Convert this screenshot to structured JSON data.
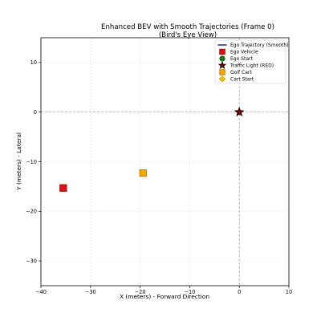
{
  "chart_data": {
    "type": "scatter",
    "title": "Enhanced BEV with Smooth Trajectories (Frame 0)",
    "subtitle": "(Bird's Eye View)",
    "xlabel": "X (meters) - Forward Direction",
    "ylabel": "Y (meters) - Lateral",
    "xlim": [
      -40,
      10
    ],
    "ylim": [
      -35,
      15
    ],
    "xticks": [
      -40,
      -30,
      -20,
      -10,
      0,
      10
    ],
    "yticks": [
      -30,
      -20,
      -10,
      0,
      10
    ],
    "xtick_labels": [
      "−40",
      "−30",
      "−20",
      "−10",
      "0",
      "10"
    ],
    "ytick_labels": [
      "−30",
      "−20",
      "−10",
      "0",
      "10"
    ],
    "grid": true,
    "reference_lines": [
      {
        "orientation": "horizontal",
        "value": 0,
        "style": "dashed"
      },
      {
        "orientation": "vertical",
        "value": 0,
        "style": "dashed"
      }
    ],
    "legend_position": "top-right",
    "series": [
      {
        "name": "Ego Trajectory (Smooth)",
        "kind": "line",
        "color": "#2c2fb0",
        "x": [],
        "y": []
      },
      {
        "name": "Ego Vehicle",
        "kind": "square",
        "color": "#e01010",
        "x": [
          -35.5
        ],
        "y": [
          -15.3
        ]
      },
      {
        "name": "Ego Start",
        "kind": "circle",
        "color": "#1a7a1a",
        "x": [],
        "y": []
      },
      {
        "name": "Traffic Light (RED)",
        "kind": "star",
        "color": "#8b0000",
        "x": [
          0
        ],
        "y": [
          0
        ]
      },
      {
        "name": "Golf Cart",
        "kind": "square",
        "color": "#f5a800",
        "x": [
          -19.4
        ],
        "y": [
          -12.3
        ]
      },
      {
        "name": "Cart Start",
        "kind": "diamond",
        "color": "#f5c400",
        "x": [],
        "y": []
      }
    ]
  }
}
